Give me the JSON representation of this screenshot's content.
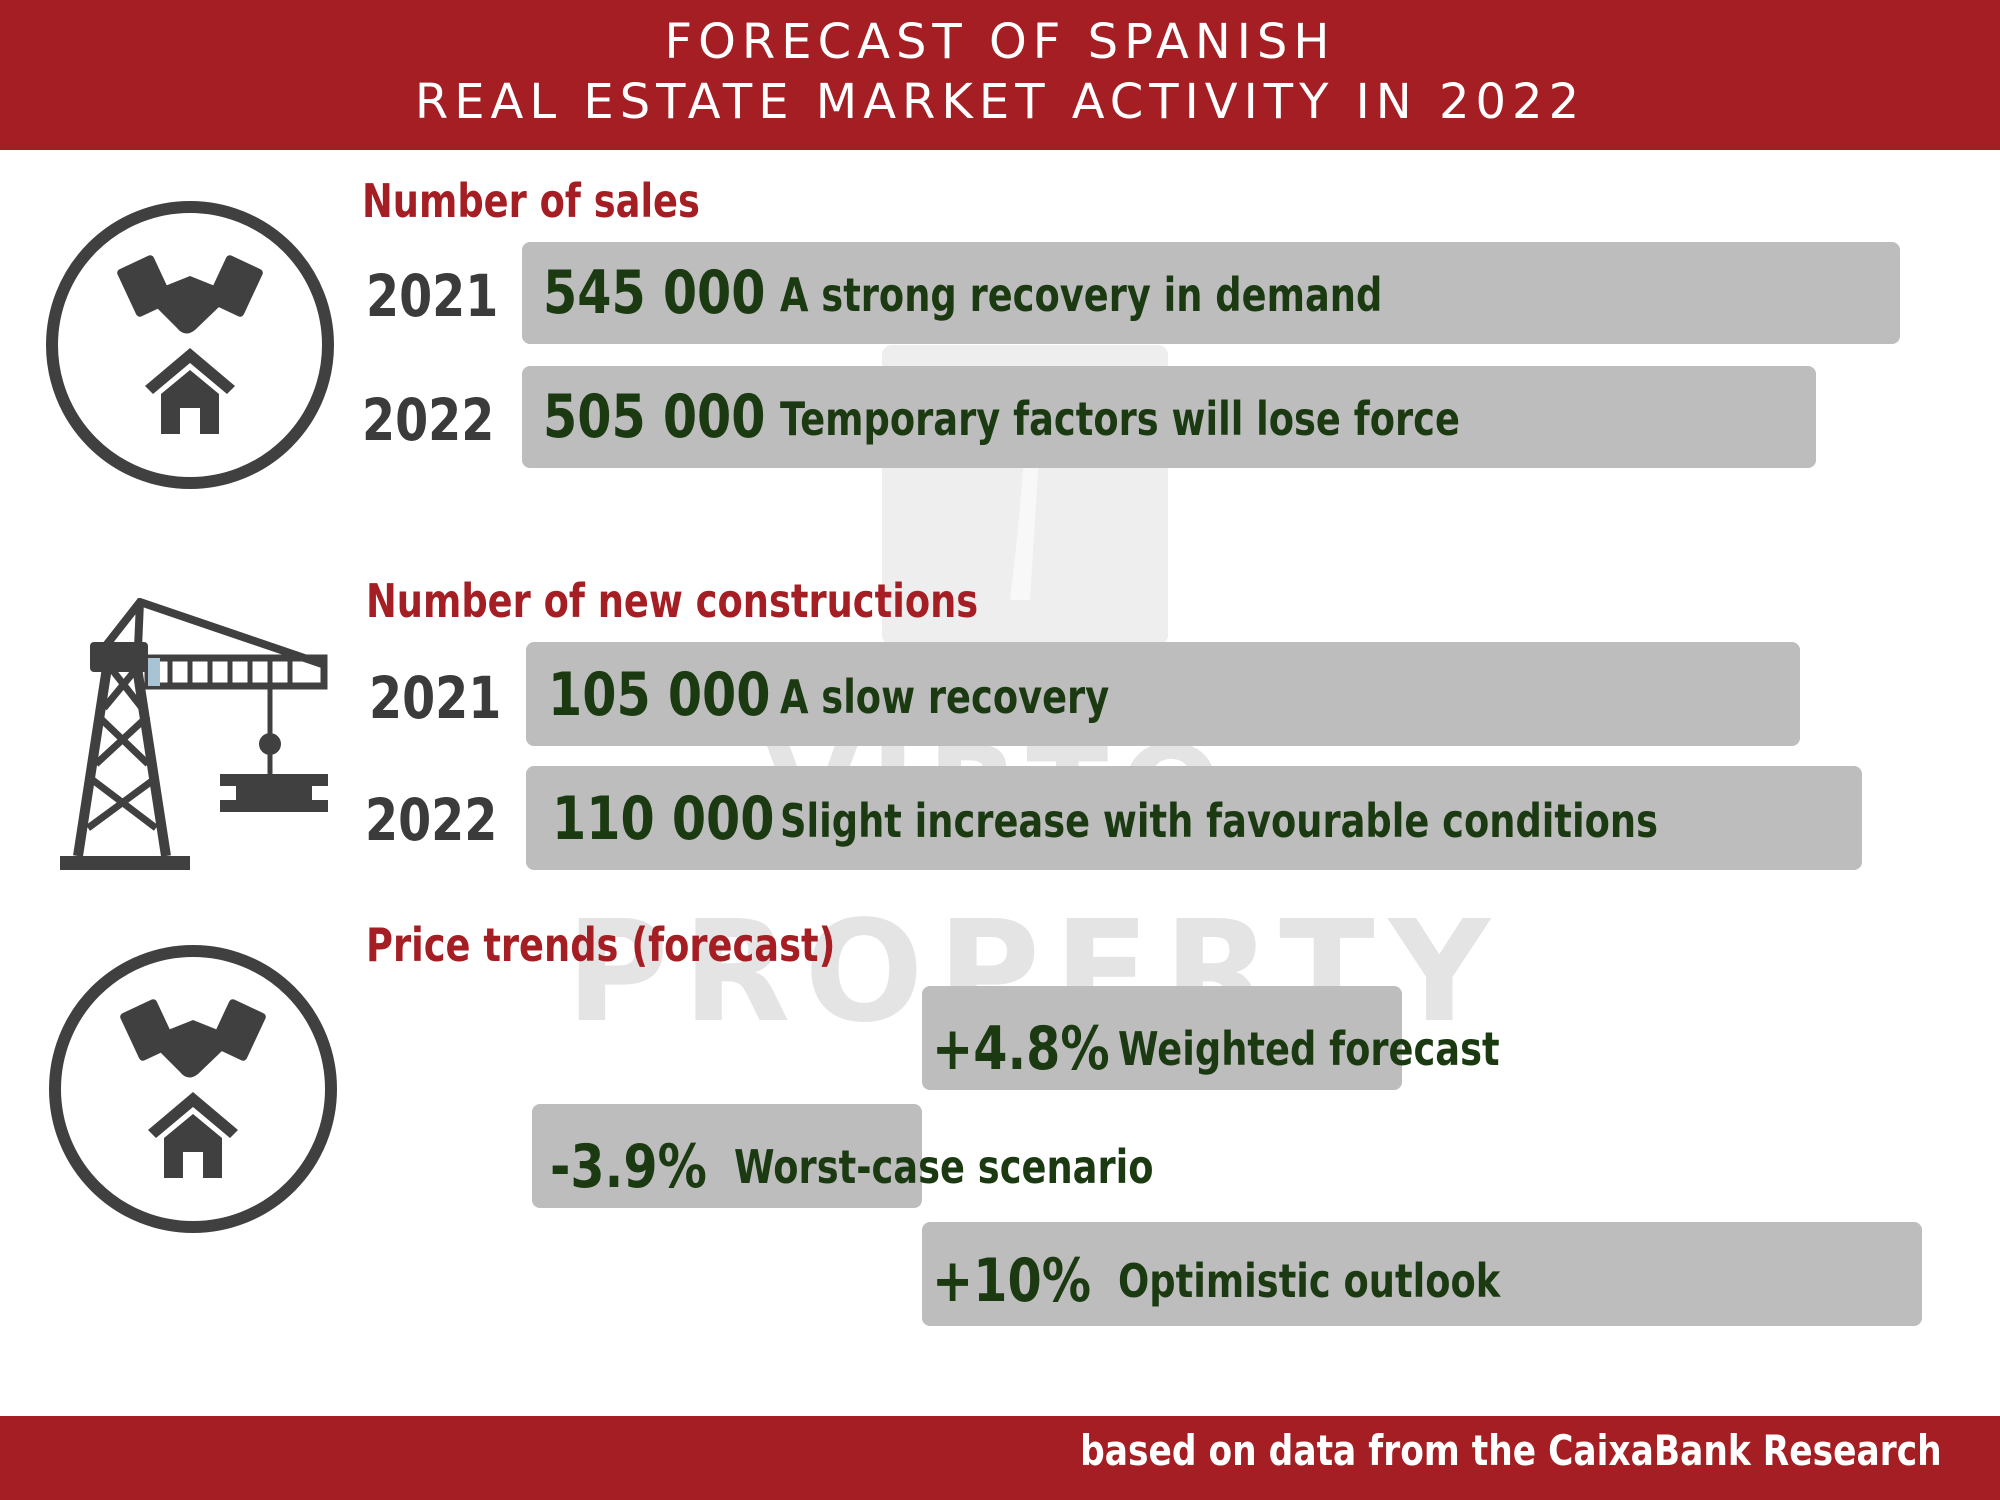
{
  "header": {
    "title_line1": "FORECAST OF SPANISH",
    "title_line2": "REAL ESTATE MARKET ACTIVITY IN 2022"
  },
  "footer": {
    "source": "based on data from the CaixaBank Research"
  },
  "watermark": {
    "line1": "VIRTO",
    "line2": "PROPERTY"
  },
  "colors": {
    "header": "#a41e23",
    "bar": "#bdbdbd",
    "value_text": "#1b3a12",
    "icon": "#404040"
  },
  "chart_data": [
    {
      "type": "bar",
      "title": "Number of sales",
      "categories": [
        "2021",
        "2022"
      ],
      "values": [
        545000,
        505000
      ],
      "value_labels": [
        "545 000",
        "505 000"
      ],
      "annotations": [
        "A strong recovery in demand",
        "Temporary factors will lose force"
      ],
      "icon": "handshake-house-icon"
    },
    {
      "type": "bar",
      "title": "Number of new constructions",
      "categories": [
        "2021",
        "2022"
      ],
      "values": [
        105000,
        110000
      ],
      "value_labels": [
        "105 000",
        "110 000"
      ],
      "annotations": [
        "A slow recovery",
        "Slight increase with favourable conditions"
      ],
      "icon": "crane-icon"
    },
    {
      "type": "bar",
      "title": "Price trends (forecast)",
      "values": [
        4.8,
        -3.9,
        10
      ],
      "value_labels": [
        "+4.8%",
        "-3.9%",
        "+10%"
      ],
      "annotations": [
        "Weighted forecast",
        "Worst-case scenario",
        "Optimistic outlook"
      ],
      "icon": "handshake-house-icon"
    }
  ]
}
